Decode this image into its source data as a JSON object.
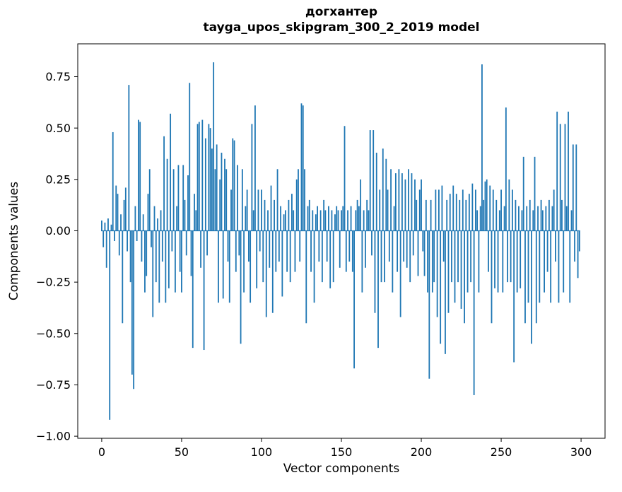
{
  "chart_data": {
    "type": "bar",
    "title_line1": "догхантер",
    "title_line2": "tayga_upos_skipgram_300_2_2019 model",
    "title": "догхантер\ntayga_upos_skipgram_300_2_2019 model",
    "xlabel": "Vector components",
    "ylabel": "Components values",
    "legend": "none",
    "grid": false,
    "bar_color": "#1f77b4",
    "axis_color": "#000000",
    "xlim": [
      -15,
      315
    ],
    "ylim": [
      -1.01,
      0.91
    ],
    "x_start": 0,
    "xticks": {
      "values": [
        0,
        50,
        100,
        150,
        200,
        250,
        300
      ],
      "labels": [
        "0",
        "50",
        "100",
        "150",
        "200",
        "250",
        "300"
      ]
    },
    "yticks": {
      "values": [
        -1.0,
        -0.75,
        -0.5,
        -0.25,
        0.0,
        0.25,
        0.5,
        0.75
      ],
      "labels": [
        "−1.00",
        "−0.75",
        "−0.50",
        "−0.25",
        "0.00",
        "0.25",
        "0.50",
        "0.75"
      ]
    },
    "values": [
      0.05,
      -0.08,
      0.04,
      -0.18,
      0.06,
      -0.92,
      0.03,
      0.48,
      -0.05,
      0.22,
      0.18,
      -0.12,
      0.08,
      -0.45,
      0.15,
      0.21,
      -0.1,
      0.71,
      -0.25,
      -0.7,
      -0.77,
      0.12,
      -0.05,
      0.54,
      0.53,
      -0.15,
      0.08,
      -0.3,
      -0.22,
      0.18,
      0.3,
      -0.08,
      -0.42,
      0.12,
      -0.25,
      0.06,
      -0.35,
      0.1,
      -0.15,
      0.46,
      -0.35,
      0.35,
      -0.28,
      0.57,
      -0.1,
      0.3,
      -0.3,
      0.12,
      0.32,
      -0.2,
      -0.3,
      0.32,
      0.15,
      -0.12,
      0.27,
      0.72,
      -0.22,
      -0.57,
      0.18,
      0.1,
      0.52,
      0.53,
      -0.18,
      0.54,
      -0.58,
      0.45,
      -0.12,
      0.52,
      0.5,
      0.4,
      0.82,
      0.3,
      0.42,
      -0.35,
      0.25,
      0.38,
      -0.33,
      0.35,
      0.3,
      -0.15,
      -0.35,
      0.2,
      0.45,
      0.44,
      -0.2,
      0.32,
      -0.12,
      -0.55,
      0.3,
      -0.3,
      0.12,
      0.2,
      -0.15,
      -0.35,
      0.52,
      0.1,
      0.61,
      -0.28,
      0.2,
      -0.1,
      0.2,
      -0.25,
      0.15,
      -0.42,
      0.1,
      -0.18,
      0.22,
      -0.4,
      0.15,
      -0.2,
      0.3,
      -0.15,
      0.12,
      -0.32,
      0.08,
      0.1,
      -0.2,
      0.15,
      -0.25,
      0.18,
      0.1,
      -0.2,
      0.25,
      0.3,
      -0.15,
      0.62,
      0.61,
      0.3,
      -0.45,
      0.12,
      0.15,
      -0.2,
      0.1,
      -0.35,
      0.08,
      0.12,
      -0.15,
      0.1,
      -0.25,
      0.15,
      0.1,
      -0.15,
      0.12,
      -0.28,
      0.1,
      -0.25,
      0.08,
      0.12,
      0.1,
      -0.18,
      0.1,
      0.12,
      0.51,
      -0.2,
      0.1,
      -0.15,
      0.12,
      -0.2,
      -0.67,
      0.1,
      0.15,
      0.12,
      0.25,
      -0.3,
      0.1,
      -0.18,
      0.15,
      0.1,
      0.49,
      -0.12,
      0.49,
      -0.4,
      0.38,
      -0.57,
      0.2,
      -0.25,
      0.4,
      -0.25,
      0.35,
      0.2,
      -0.15,
      0.3,
      -0.3,
      0.12,
      0.28,
      -0.2,
      0.3,
      -0.42,
      0.28,
      -0.15,
      0.25,
      -0.18,
      0.3,
      -0.25,
      0.28,
      -0.12,
      0.25,
      0.15,
      -0.22,
      0.2,
      0.25,
      -0.1,
      -0.22,
      0.15,
      -0.3,
      -0.72,
      0.15,
      -0.3,
      -0.25,
      0.2,
      -0.42,
      0.2,
      -0.55,
      0.22,
      -0.15,
      -0.6,
      0.15,
      -0.4,
      0.18,
      -0.25,
      0.22,
      -0.35,
      0.18,
      -0.25,
      0.15,
      -0.38,
      0.2,
      -0.45,
      0.15,
      -0.3,
      0.18,
      -0.25,
      0.23,
      -0.8,
      0.2,
      0.1,
      -0.3,
      0.12,
      0.81,
      0.15,
      0.24,
      0.25,
      -0.2,
      0.22,
      -0.45,
      0.2,
      -0.28,
      0.15,
      -0.3,
      0.1,
      0.2,
      -0.3,
      0.12,
      0.6,
      -0.25,
      0.25,
      -0.25,
      0.2,
      -0.64,
      0.15,
      -0.3,
      0.12,
      -0.28,
      0.1,
      0.36,
      -0.45,
      0.12,
      -0.35,
      0.15,
      -0.55,
      0.1,
      0.36,
      -0.45,
      0.12,
      -0.35,
      0.15,
      0.1,
      -0.3,
      0.12,
      -0.2,
      0.15,
      -0.35,
      0.12,
      0.2,
      -0.15,
      0.58,
      -0.35,
      0.52,
      0.15,
      -0.3,
      0.52,
      0.12,
      0.58,
      -0.35,
      0.1,
      0.42,
      -0.15,
      0.42,
      -0.23,
      -0.1
    ]
  }
}
